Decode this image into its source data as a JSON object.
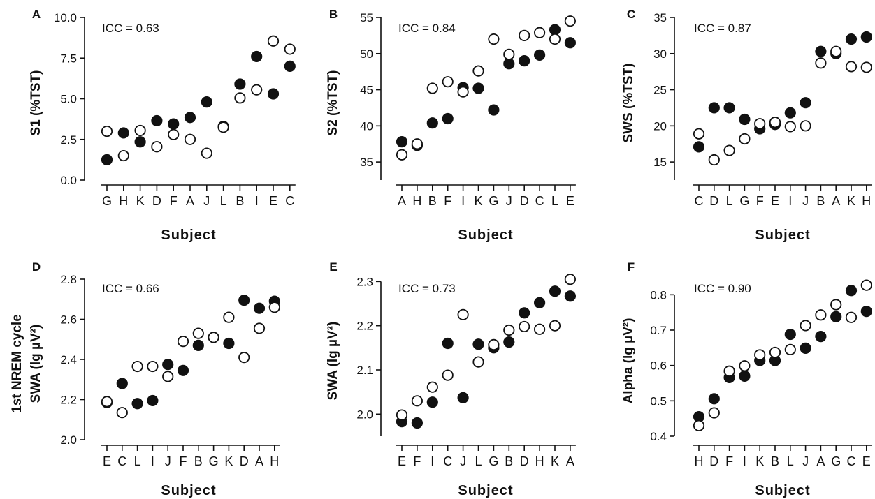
{
  "chart_data": [
    {
      "type": "scatter",
      "panel": "A",
      "ylabel": "S1 (%TST)",
      "xlabel": "Subject",
      "annotation": "ICC = 0.63",
      "ylim": [
        0,
        10
      ],
      "yticks": [
        "0.0",
        "2.5",
        "5.0",
        "7.5",
        "10.0"
      ],
      "categories": [
        "G",
        "H",
        "K",
        "D",
        "F",
        "A",
        "J",
        "L",
        "B",
        "I",
        "E",
        "C"
      ],
      "series": [
        {
          "marker": "filled",
          "values": [
            1.25,
            2.9,
            2.35,
            3.65,
            3.45,
            3.85,
            4.8,
            3.3,
            5.9,
            7.6,
            5.3,
            7.0
          ]
        },
        {
          "marker": "open",
          "values": [
            3.0,
            1.5,
            3.05,
            2.05,
            2.8,
            2.5,
            1.65,
            3.25,
            5.05,
            5.55,
            8.55,
            8.05
          ]
        }
      ]
    },
    {
      "type": "scatter",
      "panel": "B",
      "ylabel": "S2 (%TST)",
      "xlabel": "Subject",
      "annotation": "ICC = 0.84",
      "ylim": [
        32.5,
        55
      ],
      "yticks": [
        "35",
        "40",
        "45",
        "50",
        "55"
      ],
      "categories": [
        "A",
        "H",
        "B",
        "F",
        "I",
        "K",
        "G",
        "J",
        "D",
        "C",
        "L",
        "E"
      ],
      "series": [
        {
          "marker": "filled",
          "values": [
            37.8,
            37.3,
            40.4,
            41.0,
            45.3,
            45.2,
            42.2,
            48.6,
            49.0,
            49.8,
            53.3,
            51.5
          ]
        },
        {
          "marker": "open",
          "values": [
            36.0,
            37.5,
            45.2,
            46.1,
            44.7,
            47.6,
            52.0,
            49.9,
            52.5,
            52.9,
            52.0,
            54.5
          ]
        }
      ]
    },
    {
      "type": "scatter",
      "panel": "C",
      "ylabel": "SWS (%TST)",
      "xlabel": "Subject",
      "annotation": "ICC = 0.87",
      "ylim": [
        12.5,
        35
      ],
      "yticks": [
        "15",
        "20",
        "25",
        "30",
        "35"
      ],
      "categories": [
        "C",
        "D",
        "L",
        "G",
        "F",
        "E",
        "I",
        "J",
        "B",
        "A",
        "K",
        "H"
      ],
      "series": [
        {
          "marker": "filled",
          "values": [
            17.1,
            22.5,
            22.5,
            20.9,
            19.6,
            20.2,
            21.8,
            23.2,
            30.3,
            30.0,
            32.0,
            32.3
          ]
        },
        {
          "marker": "open",
          "values": [
            18.9,
            15.3,
            16.6,
            18.2,
            20.3,
            20.5,
            19.9,
            20.0,
            28.7,
            30.3,
            28.2,
            28.1
          ]
        }
      ]
    },
    {
      "type": "scatter",
      "panel": "D",
      "ylabel": "SWA (lg µV²)",
      "ylabel_line1": "1st NREM cycle",
      "xlabel": "Subject",
      "annotation": "ICC = 0.66",
      "ylim": [
        2.0,
        2.8
      ],
      "yticks": [
        "2.0",
        "2.2",
        "2.4",
        "2.6",
        "2.8"
      ],
      "categories": [
        "E",
        "C",
        "L",
        "I",
        "J",
        "F",
        "B",
        "G",
        "K",
        "D",
        "A",
        "H"
      ],
      "series": [
        {
          "marker": "filled",
          "values": [
            2.185,
            2.28,
            2.18,
            2.195,
            2.375,
            2.345,
            2.47,
            2.51,
            2.48,
            2.695,
            2.655,
            2.69
          ]
        },
        {
          "marker": "open",
          "values": [
            2.19,
            2.135,
            2.365,
            2.365,
            2.315,
            2.49,
            2.53,
            2.51,
            2.61,
            2.41,
            2.555,
            2.66
          ]
        }
      ]
    },
    {
      "type": "scatter",
      "panel": "E",
      "ylabel": "SWA (lg µV²)",
      "xlabel": "Subject",
      "annotation": "ICC = 0.73",
      "ylim": [
        1.95,
        2.31
      ],
      "yticks": [
        "2.0",
        "2.1",
        "2.2",
        "2.3"
      ],
      "categories": [
        "E",
        "F",
        "I",
        "C",
        "J",
        "L",
        "G",
        "B",
        "D",
        "H",
        "K",
        "A"
      ],
      "series": [
        {
          "marker": "filled",
          "values": [
            1.983,
            1.98,
            2.027,
            2.16,
            2.037,
            2.158,
            2.15,
            2.163,
            2.229,
            2.252,
            2.278,
            2.267
          ]
        },
        {
          "marker": "open",
          "values": [
            1.998,
            2.03,
            2.061,
            2.088,
            2.225,
            2.118,
            2.157,
            2.19,
            2.198,
            2.192,
            2.2,
            2.305
          ]
        }
      ]
    },
    {
      "type": "scatter",
      "panel": "F",
      "ylabel": "Alpha (lg µV²)",
      "xlabel": "Subject",
      "annotation": "ICC = 0.90",
      "ylim": [
        0.4,
        0.85
      ],
      "yticks": [
        "0.4",
        "0.5",
        "0.6",
        "0.7",
        "0.8"
      ],
      "categories": [
        "H",
        "D",
        "F",
        "I",
        "K",
        "B",
        "L",
        "J",
        "A",
        "G",
        "C",
        "E"
      ],
      "series": [
        {
          "marker": "filled",
          "values": [
            0.455,
            0.506,
            0.566,
            0.57,
            0.614,
            0.614,
            0.688,
            0.649,
            0.682,
            0.738,
            0.812,
            0.753
          ]
        },
        {
          "marker": "open",
          "values": [
            0.43,
            0.466,
            0.584,
            0.599,
            0.63,
            0.637,
            0.645,
            0.713,
            0.743,
            0.772,
            0.736,
            0.827
          ]
        }
      ]
    }
  ]
}
